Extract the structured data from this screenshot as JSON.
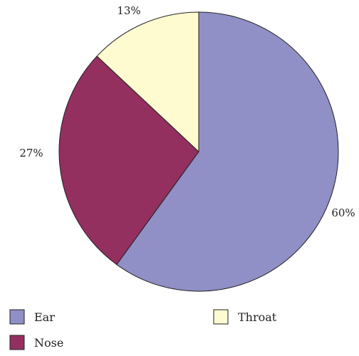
{
  "chart_data": {
    "type": "pie",
    "title": "",
    "slices": [
      {
        "label": "Ear",
        "value": 60,
        "display": "60%",
        "color": "#9090C6"
      },
      {
        "label": "Nose",
        "value": 27,
        "display": "27%",
        "color": "#933060"
      },
      {
        "label": "Throat",
        "value": 13,
        "display": "13%",
        "color": "#FFFBD0"
      }
    ],
    "stroke_color": "#222222",
    "start": "top",
    "direction": "clockwise",
    "legend": {
      "placement": "bottom",
      "order": [
        "Ear",
        "Throat",
        "Nose"
      ]
    }
  }
}
